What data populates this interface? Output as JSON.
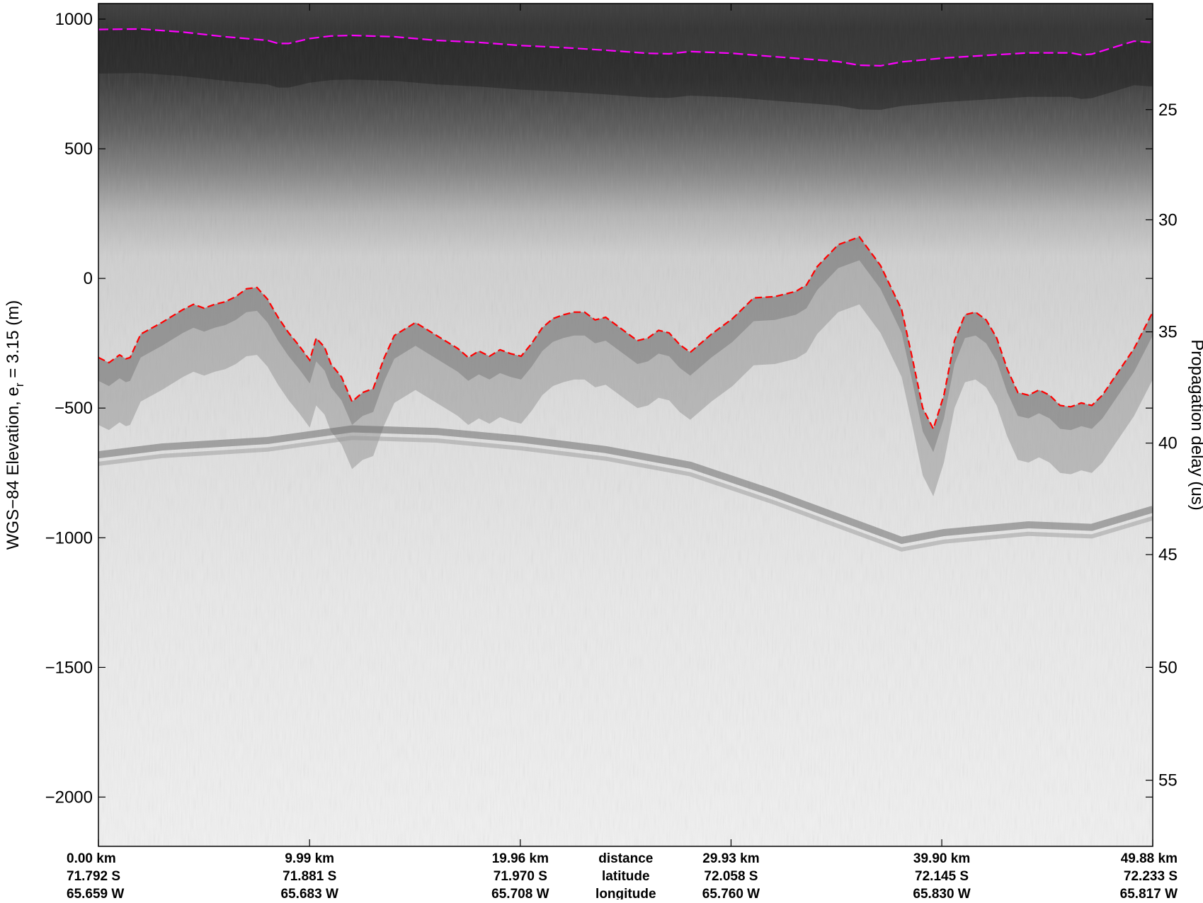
{
  "chart_data": {
    "type": "radargram",
    "ylabel_left_main": "WGS−84 Elevation, e",
    "ylabel_left_sub": "r",
    "ylabel_left_tail": " = 3.15 (m)",
    "ylabel_right": "Propagation delay (us)",
    "ylim": [
      -2190,
      1060
    ],
    "xlim_km": [
      0,
      49.88
    ],
    "y_ticks_left": [
      {
        "value": 1000,
        "label": "1000"
      },
      {
        "value": 500,
        "label": "500"
      },
      {
        "value": 0,
        "label": "0"
      },
      {
        "value": -500,
        "label": "−500"
      },
      {
        "value": -1000,
        "label": "−1000"
      },
      {
        "value": -1500,
        "label": "−1500"
      },
      {
        "value": -2000,
        "label": "−2000"
      }
    ],
    "y_ticks_right": [
      {
        "elev": 651,
        "label": "25"
      },
      {
        "elev": 226,
        "label": "30"
      },
      {
        "elev": -206,
        "label": "35"
      },
      {
        "elev": -635,
        "label": "40"
      },
      {
        "elev": -1065,
        "label": "45"
      },
      {
        "elev": -1500,
        "label": "50"
      },
      {
        "elev": -1935,
        "label": "55"
      }
    ],
    "bottom_labels": [
      {
        "km": 0.0,
        "distance": "0.00 km",
        "latitude": "71.792 S",
        "longitude": "65.659 W",
        "align": "start"
      },
      {
        "km": 9.99,
        "distance": "9.99 km",
        "latitude": "71.881 S",
        "longitude": "65.683 W",
        "align": "middle"
      },
      {
        "km": 19.96,
        "distance": "19.96 km",
        "latitude": "71.970 S",
        "longitude": "65.708 W",
        "align": "middle"
      },
      {
        "km": 29.93,
        "distance": "29.93 km",
        "latitude": "72.058 S",
        "longitude": "65.760 W",
        "align": "middle"
      },
      {
        "km": 39.9,
        "distance": "39.90 km",
        "latitude": "72.145 S",
        "longitude": "65.830 W",
        "align": "middle"
      },
      {
        "km": 49.88,
        "distance": "49.88 km",
        "latitude": "72.233 S",
        "longitude": "65.817 W",
        "align": "end"
      }
    ],
    "row_titles": {
      "distance": "distance",
      "latitude": "latitude",
      "longitude": "longitude",
      "km": 24.95
    },
    "series": [
      {
        "role": "surface",
        "color": "#ff00ff",
        "points": [
          [
            0,
            960
          ],
          [
            2,
            962
          ],
          [
            4,
            950
          ],
          [
            6,
            932
          ],
          [
            8,
            918
          ],
          [
            8.5,
            906
          ],
          [
            9,
            906
          ],
          [
            10,
            925
          ],
          [
            11,
            935
          ],
          [
            12,
            937
          ],
          [
            14,
            932
          ],
          [
            16,
            918
          ],
          [
            18,
            910
          ],
          [
            20,
            898
          ],
          [
            22,
            890
          ],
          [
            24,
            880
          ],
          [
            26,
            868
          ],
          [
            27,
            866
          ],
          [
            28,
            875
          ],
          [
            30,
            868
          ],
          [
            32,
            855
          ],
          [
            34,
            843
          ],
          [
            35,
            836
          ],
          [
            36,
            822
          ],
          [
            37,
            820
          ],
          [
            38,
            835
          ],
          [
            40,
            850
          ],
          [
            42,
            860
          ],
          [
            44,
            870
          ],
          [
            46,
            870
          ],
          [
            46.5,
            862
          ],
          [
            47,
            865
          ],
          [
            48,
            890
          ],
          [
            49,
            915
          ],
          [
            49.88,
            910
          ]
        ]
      },
      {
        "role": "bed",
        "color": "#ff0000",
        "points": [
          [
            0,
            -305
          ],
          [
            0.5,
            -325
          ],
          [
            1,
            -295
          ],
          [
            1.3,
            -310
          ],
          [
            1.5,
            -305
          ],
          [
            2,
            -215
          ],
          [
            3,
            -170
          ],
          [
            4,
            -120
          ],
          [
            4.5,
            -100
          ],
          [
            5,
            -115
          ],
          [
            5.5,
            -100
          ],
          [
            6,
            -90
          ],
          [
            6.5,
            -70
          ],
          [
            7,
            -40
          ],
          [
            7.5,
            -35
          ],
          [
            8,
            -80
          ],
          [
            8.5,
            -150
          ],
          [
            9,
            -210
          ],
          [
            9.5,
            -260
          ],
          [
            10,
            -315
          ],
          [
            10.3,
            -230
          ],
          [
            10.7,
            -265
          ],
          [
            11,
            -330
          ],
          [
            11.5,
            -380
          ],
          [
            12,
            -475
          ],
          [
            12.5,
            -440
          ],
          [
            13,
            -425
          ],
          [
            13.5,
            -310
          ],
          [
            14,
            -220
          ],
          [
            15,
            -170
          ],
          [
            16,
            -220
          ],
          [
            17,
            -270
          ],
          [
            17.5,
            -305
          ],
          [
            18,
            -280
          ],
          [
            18.5,
            -300
          ],
          [
            19,
            -275
          ],
          [
            19.5,
            -290
          ],
          [
            20,
            -300
          ],
          [
            20.5,
            -250
          ],
          [
            21,
            -190
          ],
          [
            21.5,
            -155
          ],
          [
            22,
            -140
          ],
          [
            22.5,
            -130
          ],
          [
            23,
            -130
          ],
          [
            23.5,
            -160
          ],
          [
            24,
            -150
          ],
          [
            24.5,
            -180
          ],
          [
            25,
            -210
          ],
          [
            25.5,
            -240
          ],
          [
            26,
            -230
          ],
          [
            26.5,
            -200
          ],
          [
            27,
            -210
          ],
          [
            27.5,
            -255
          ],
          [
            28,
            -285
          ],
          [
            29,
            -215
          ],
          [
            30,
            -155
          ],
          [
            31,
            -75
          ],
          [
            32,
            -70
          ],
          [
            33,
            -50
          ],
          [
            33.5,
            -25
          ],
          [
            34,
            45
          ],
          [
            35,
            130
          ],
          [
            36,
            160
          ],
          [
            37,
            50
          ],
          [
            38,
            -120
          ],
          [
            38.5,
            -305
          ],
          [
            39,
            -500
          ],
          [
            39.5,
            -580
          ],
          [
            40,
            -450
          ],
          [
            40.5,
            -240
          ],
          [
            41,
            -140
          ],
          [
            41.5,
            -130
          ],
          [
            42,
            -160
          ],
          [
            42.5,
            -230
          ],
          [
            43,
            -350
          ],
          [
            43.5,
            -440
          ],
          [
            44,
            -450
          ],
          [
            44.5,
            -430
          ],
          [
            45,
            -450
          ],
          [
            45.5,
            -490
          ],
          [
            46,
            -495
          ],
          [
            46.5,
            -480
          ],
          [
            47,
            -490
          ],
          [
            47.5,
            -450
          ],
          [
            48,
            -390
          ],
          [
            48.5,
            -330
          ],
          [
            49,
            -270
          ],
          [
            49.88,
            -130
          ]
        ]
      }
    ],
    "colors": {
      "surface": "#ff00ff",
      "bed": "#ff0000",
      "axes": "#000000",
      "background": "#ffffff"
    }
  }
}
